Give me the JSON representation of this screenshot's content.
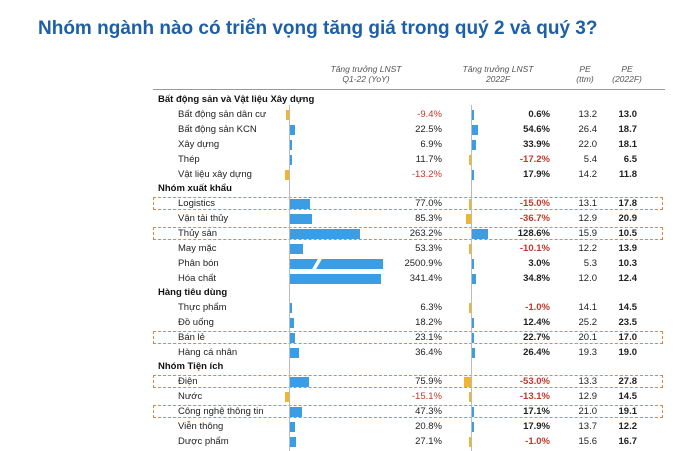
{
  "title": "Nhóm ngành nào có triển vọng tăng giá trong quý 2 và quý 3?",
  "headers": {
    "col1": "Tăng trưởng LNST",
    "col1_sub": "Q1-22 (YoY)",
    "col2": "Tăng trưởng LNST",
    "col2_sub": "2022F",
    "col3": "PE",
    "col3_sub": "(ttm)",
    "col4": "PE",
    "col4_sub": "(2022F)"
  },
  "colors": {
    "positive": "#3b9de3",
    "negative": "#f2b530",
    "title": "#1f5fa8",
    "highlight_border": "#d8894a"
  },
  "chart_data": {
    "type": "table",
    "title": "Nhóm ngành nào có triển vọng tăng giá trong quý 2 và quý 3?",
    "columns": [
      "Tăng trưởng LNST Q1-22 (YoY)",
      "Tăng trưởng LNST 2022F",
      "PE (ttm)",
      "PE (2022F)"
    ],
    "groups": [
      {
        "name": "Bất động sản và Vật liệu Xây dựng",
        "rows": [
          {
            "name": "Bất động sản dân cư",
            "g1": -9.4,
            "g1_text": "-9.4%",
            "g2": 0.6,
            "g2_text": "0.6%",
            "pe_ttm": "13.2",
            "pe_f": "13.0",
            "highlight": false
          },
          {
            "name": "Bất động sản KCN",
            "g1": 22.5,
            "g1_text": "22.5%",
            "g2": 54.6,
            "g2_text": "54.6%",
            "pe_ttm": "26.4",
            "pe_f": "18.7",
            "highlight": false
          },
          {
            "name": "Xây dựng",
            "g1": 6.9,
            "g1_text": "6.9%",
            "g2": 33.9,
            "g2_text": "33.9%",
            "pe_ttm": "22.0",
            "pe_f": "18.1",
            "highlight": false
          },
          {
            "name": "Thép",
            "g1": 11.7,
            "g1_text": "11.7%",
            "g2": -17.2,
            "g2_text": "-17.2%",
            "pe_ttm": "5.4",
            "pe_f": "6.5",
            "highlight": false
          },
          {
            "name": "Vật liệu xây dựng",
            "g1": -13.2,
            "g1_text": "-13.2%",
            "g2": 17.9,
            "g2_text": "17.9%",
            "pe_ttm": "14.2",
            "pe_f": "11.8",
            "highlight": false
          }
        ]
      },
      {
        "name": "Nhóm xuất khẩu",
        "rows": [
          {
            "name": "Logistics",
            "g1": 77.0,
            "g1_text": "77.0%",
            "g2": -15.0,
            "g2_text": "-15.0%",
            "pe_ttm": "13.1",
            "pe_f": "17.8",
            "highlight": true
          },
          {
            "name": "Vận tải thủy",
            "g1": 85.3,
            "g1_text": "85.3%",
            "g2": -36.7,
            "g2_text": "-36.7%",
            "pe_ttm": "12.9",
            "pe_f": "20.9",
            "highlight": false
          },
          {
            "name": "Thủy sản",
            "g1": 263.2,
            "g1_text": "263.2%",
            "g2": 128.6,
            "g2_text": "128.6%",
            "pe_ttm": "15.9",
            "pe_f": "10.5",
            "highlight": true
          },
          {
            "name": "May mặc",
            "g1": 53.3,
            "g1_text": "53.3%",
            "g2": -10.1,
            "g2_text": "-10.1%",
            "pe_ttm": "12.2",
            "pe_f": "13.9",
            "highlight": false
          },
          {
            "name": "Phân bón",
            "g1": 2500.9,
            "g1_text": "2500.9%",
            "g2": 3.0,
            "g2_text": "3.0%",
            "pe_ttm": "5.3",
            "pe_f": "10.3",
            "highlight": false,
            "broken": true
          },
          {
            "name": "Hóa chất",
            "g1": 341.4,
            "g1_text": "341.4%",
            "g2": 34.8,
            "g2_text": "34.8%",
            "pe_ttm": "12.0",
            "pe_f": "12.4",
            "highlight": false
          }
        ]
      },
      {
        "name": "Hàng tiêu dùng",
        "rows": [
          {
            "name": "Thực phẩm",
            "g1": 6.3,
            "g1_text": "6.3%",
            "g2": -1.0,
            "g2_text": "-1.0%",
            "pe_ttm": "14.1",
            "pe_f": "14.5",
            "highlight": false
          },
          {
            "name": "Đồ uống",
            "g1": 18.2,
            "g1_text": "18.2%",
            "g2": 12.4,
            "g2_text": "12.4%",
            "pe_ttm": "25.2",
            "pe_f": "23.5",
            "highlight": false
          },
          {
            "name": "Bán lẻ",
            "g1": 23.1,
            "g1_text": "23.1%",
            "g2": 22.7,
            "g2_text": "22.7%",
            "pe_ttm": "20.1",
            "pe_f": "17.0",
            "highlight": true
          },
          {
            "name": "Hàng cá nhân",
            "g1": 36.4,
            "g1_text": "36.4%",
            "g2": 26.4,
            "g2_text": "26.4%",
            "pe_ttm": "19.3",
            "pe_f": "19.0",
            "highlight": false
          }
        ]
      },
      {
        "name": "Nhóm Tiện ích",
        "rows": [
          {
            "name": "Điện",
            "g1": 75.9,
            "g1_text": "75.9%",
            "g2": -53.0,
            "g2_text": "-53.0%",
            "pe_ttm": "13.3",
            "pe_f": "27.8",
            "highlight": true
          },
          {
            "name": "Nước",
            "g1": -15.1,
            "g1_text": "-15.1%",
            "g2": -13.1,
            "g2_text": "-13.1%",
            "pe_ttm": "12.9",
            "pe_f": "14.5",
            "highlight": false
          },
          {
            "name": "Công nghệ thông tin",
            "g1": 47.3,
            "g1_text": "47.3%",
            "g2": 17.1,
            "g2_text": "17.1%",
            "pe_ttm": "21.0",
            "pe_f": "19.1",
            "highlight": true
          },
          {
            "name": "Viễn thông",
            "g1": 20.8,
            "g1_text": "20.8%",
            "g2": 17.9,
            "g2_text": "17.9%",
            "pe_ttm": "13.7",
            "pe_f": "12.2",
            "highlight": false
          },
          {
            "name": "Dược phẩm",
            "g1": 27.1,
            "g1_text": "27.1%",
            "g2": -1.0,
            "g2_text": "-1.0%",
            "pe_ttm": "15.6",
            "pe_f": "16.7",
            "highlight": false
          }
        ]
      }
    ]
  }
}
